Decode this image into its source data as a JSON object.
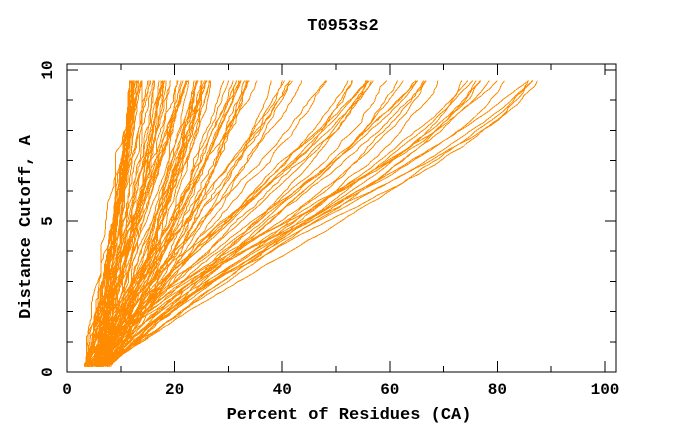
{
  "page": {
    "background_color": "#ffffff"
  },
  "chart_data": {
    "type": "line",
    "title": "T0953s2",
    "xlabel": "Percent of Residues (CA)",
    "ylabel": "Distance Cutoff, A",
    "xlim": [
      0,
      102
    ],
    "ylim": [
      0,
      10.2
    ],
    "xticks": [
      0,
      20,
      40,
      60,
      80,
      100
    ],
    "xtick_labels": [
      "0",
      "20",
      "40",
      "60",
      "80",
      "100"
    ],
    "xminor": [
      10,
      30,
      50,
      70,
      90
    ],
    "yticks": [
      0,
      5,
      10
    ],
    "ytick_labels": [
      "0",
      "5",
      "10"
    ],
    "yminor": [
      1,
      2,
      3,
      4,
      6,
      7,
      8,
      9
    ],
    "grid": false,
    "legend": "none",
    "curve_color": "#ff8c00",
    "axis_color": "#000000",
    "n_curves": 120,
    "seed": 7,
    "cutoff_range": [
      0.18,
      9.65
    ],
    "cutoff_step": 0.1,
    "start_percent_range": [
      3.2,
      8.0
    ],
    "final_percent_range": [
      12,
      88
    ],
    "final_percent_skew": 2.3,
    "envelope_left": [
      [
        3.3,
        0.2
      ],
      [
        4.3,
        2.4
      ],
      [
        8.6,
        5.0
      ],
      [
        9.0,
        8.3
      ],
      [
        11.7,
        9.65
      ]
    ],
    "envelope_right": [
      [
        9,
        0.2
      ],
      [
        19,
        1.4
      ],
      [
        29,
        2.4
      ],
      [
        48,
        3.5
      ],
      [
        58,
        4.1
      ],
      [
        67.5,
        5.4
      ],
      [
        82,
        7.3
      ],
      [
        87.5,
        9.65
      ]
    ],
    "description": "About 120 overlapping per-model accuracy curves: percent of CA residues fitting under each distance cutoff. Individual curves are not distinguishable in the dense orange mass; envelopes estimated from pixels."
  }
}
